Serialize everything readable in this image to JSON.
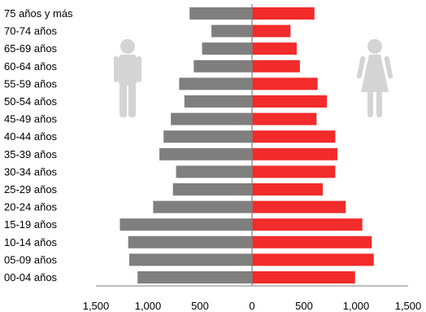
{
  "chart_data": {
    "type": "bar",
    "orientation": "horizontal-diverging",
    "categories": [
      "75 años y más",
      "70-74 años",
      "65-69 años",
      "60-64 años",
      "55-59 años",
      "50-54 años",
      "45-49 años",
      "40-44 años",
      "35-39 años",
      "30-34 años",
      "25-29 años",
      "20-24 años",
      "15-19 años",
      "10-14 años",
      "05-09 años",
      "00-04 años"
    ],
    "series": [
      {
        "values": [
          600,
          390,
          480,
          560,
          700,
          650,
          780,
          850,
          890,
          730,
          760,
          950,
          1270,
          1190,
          1180,
          1100
        ],
        "color": "#7f7f7f"
      },
      {
        "values": [
          600,
          370,
          430,
          460,
          630,
          720,
          620,
          800,
          820,
          800,
          680,
          900,
          1060,
          1150,
          1170,
          990
        ],
        "color": "#f22b2b"
      }
    ],
    "xticks": [
      "1,500",
      "1,000",
      "500",
      "0",
      "500",
      "1,000",
      "1,500"
    ],
    "xlim": [
      -1500,
      1500
    ],
    "grid": false,
    "icons": [
      "man-icon",
      "woman-icon"
    ],
    "icon_color": "#d4d4d4",
    "axis_color": "#7f7f7f"
  }
}
